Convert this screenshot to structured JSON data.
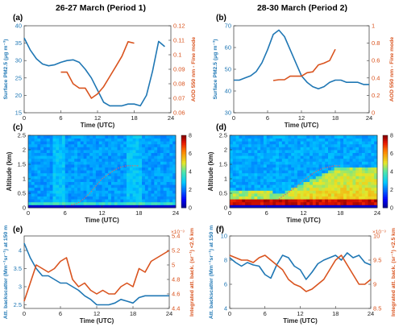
{
  "figure": {
    "period1_title": "26-27 March (Period 1)",
    "period2_title": "28-30 March (Period 2)"
  },
  "colors": {
    "blue": "#1f77b4",
    "orange": "#d9531e"
  },
  "chart_data": [
    {
      "id": "a",
      "panel_label": "(a)",
      "type": "line",
      "xlabel": "Time (UTC)",
      "xlim": [
        0,
        24
      ],
      "xticks": [
        "0",
        "6",
        "12",
        "18",
        "24"
      ],
      "left_axis": {
        "label": "Surface PM2.5 (μg m⁻³)",
        "ylim": [
          15,
          40
        ],
        "ticks": [
          "15",
          "20",
          "25",
          "30",
          "35",
          "40"
        ]
      },
      "right_axis": {
        "label": "AOD 550 nm - Fine mode",
        "ylim": [
          0.06,
          0.12
        ],
        "ticks": [
          "0.06",
          "0.07",
          "0.08",
          "0.09",
          "0.1",
          "0.11",
          "0.12"
        ]
      },
      "series": [
        {
          "axis": "left",
          "color": "blue",
          "x": [
            0,
            1,
            2,
            3,
            4,
            5,
            6,
            7,
            8,
            9,
            10,
            11,
            12,
            13,
            14,
            15,
            16,
            17,
            18,
            19,
            20,
            21,
            22,
            23
          ],
          "y": [
            36.5,
            33,
            30.5,
            29,
            28.5,
            28.8,
            29.5,
            30,
            30.2,
            29.5,
            27.5,
            25,
            21.5,
            18,
            17,
            17,
            17,
            17.5,
            17.5,
            17,
            20,
            27,
            35.5,
            34
          ]
        },
        {
          "axis": "right",
          "color": "orange",
          "x": [
            6,
            7,
            8,
            9,
            10,
            11,
            12,
            13,
            14,
            15,
            16,
            17,
            18
          ],
          "y": [
            0.088,
            0.088,
            0.08,
            0.077,
            0.077,
            0.07,
            0.073,
            0.078,
            0.085,
            0.092,
            0.099,
            0.109,
            0.108
          ]
        }
      ]
    },
    {
      "id": "b",
      "panel_label": "(b)",
      "type": "line",
      "xlabel": "Time (UTC)",
      "xlim": [
        0,
        24
      ],
      "xticks": [
        "0",
        "6",
        "12",
        "18",
        "24"
      ],
      "left_axis": {
        "label": "Surface PM2.5 (μg m⁻³)",
        "ylim": [
          30,
          70
        ],
        "ticks": [
          "30",
          "40",
          "50",
          "60",
          "70"
        ]
      },
      "right_axis": {
        "label": "AOD 550 nm - Fine mode",
        "ylim": [
          0,
          1
        ],
        "ticks": [
          "0",
          "0.2",
          "0.4",
          "0.6",
          "0.8",
          "1"
        ]
      },
      "series": [
        {
          "axis": "left",
          "color": "blue",
          "x": [
            0,
            1,
            2,
            3,
            4,
            5,
            6,
            7,
            8,
            9,
            10,
            11,
            12,
            13,
            14,
            15,
            16,
            17,
            18,
            19,
            20,
            21,
            22,
            23,
            24
          ],
          "y": [
            45,
            45,
            46,
            47,
            49,
            53,
            59,
            66,
            68,
            65,
            59,
            53,
            47,
            44,
            42,
            41,
            42,
            44,
            45,
            45,
            44,
            44,
            44,
            43,
            43
          ]
        },
        {
          "axis": "right",
          "color": "orange",
          "x": [
            7,
            8,
            9,
            10,
            11,
            12,
            13,
            14,
            15,
            16,
            17,
            18
          ],
          "y": [
            0.37,
            0.38,
            0.38,
            0.42,
            0.42,
            0.42,
            0.46,
            0.47,
            0.55,
            0.57,
            0.6,
            0.73
          ]
        }
      ]
    },
    {
      "id": "c",
      "panel_label": "(c)",
      "type": "heatmap",
      "xlabel": "Time (UTC)",
      "ylabel": "Altitude (km)",
      "xlim": [
        0,
        24
      ],
      "ylim": [
        0,
        2.5
      ],
      "xticks": [
        "0",
        "6",
        "12",
        "18",
        "24"
      ],
      "yticks": [
        "0",
        "0.5",
        "1",
        "1.5",
        "2",
        "2.5"
      ],
      "colorbar": {
        "range": [
          0,
          8
        ],
        "ticks": [
          "0",
          "2",
          "4",
          "6",
          "8"
        ]
      },
      "overlay_dashed_line": {
        "color": "#e06666",
        "x": [
          7,
          8,
          9,
          10,
          11,
          12,
          13,
          14,
          15,
          16,
          17,
          18
        ],
        "y": [
          0.1,
          0.15,
          0.3,
          0.5,
          0.75,
          1.0,
          1.15,
          1.3,
          1.4,
          1.45,
          1.45,
          1.45
        ]
      }
    },
    {
      "id": "d",
      "panel_label": "(d)",
      "type": "heatmap",
      "xlabel": "Time (UTC)",
      "ylabel": "Altitude (km)",
      "xlim": [
        0,
        24
      ],
      "ylim": [
        0,
        2.5
      ],
      "xticks": [
        "0",
        "6",
        "12",
        "18",
        "24"
      ],
      "yticks": [
        "0",
        "0.5",
        "1",
        "1.5",
        "2",
        "2.5"
      ],
      "colorbar": {
        "range": [
          0,
          8
        ],
        "ticks": [
          "0",
          "2",
          "4",
          "6",
          "8"
        ]
      },
      "overlay_dashed_line": {
        "color": "#e06666",
        "x": [
          8,
          9,
          10,
          11,
          12,
          13,
          14,
          15,
          16,
          17,
          18
        ],
        "y": [
          0.3,
          0.45,
          0.6,
          0.75,
          0.95,
          1.1,
          1.25,
          1.35,
          1.4,
          1.45,
          1.45
        ]
      }
    },
    {
      "id": "e",
      "panel_label": "(e)",
      "type": "line",
      "xlabel": "Time (UTC)",
      "xlim": [
        0,
        24
      ],
      "xticks": [
        "0",
        "6",
        "12",
        "18",
        "24"
      ],
      "left_axis": {
        "label": "Att. backscatter (Mm⁻¹sr⁻¹) at 150 m",
        "ylim": [
          2.4,
          4.4
        ],
        "ticks": [
          "2.5",
          "3",
          "3.5",
          "4"
        ]
      },
      "right_axis": {
        "label": "Integrated att. back. (sr⁻¹) <2.5 km",
        "ylim": [
          4.4,
          5.4
        ],
        "ticks": [
          "4.4",
          "4.6",
          "4.8",
          "5",
          "5.2",
          "5.4"
        ],
        "scale_label": "×10⁻³"
      },
      "series": [
        {
          "axis": "left",
          "color": "blue",
          "x": [
            0,
            1,
            2,
            3,
            4,
            5,
            6,
            7,
            8,
            9,
            10,
            11,
            12,
            13,
            14,
            15,
            16,
            17,
            18,
            19,
            20,
            21,
            22,
            23,
            24
          ],
          "y": [
            4.2,
            3.8,
            3.5,
            3.3,
            3.3,
            3.2,
            3.1,
            3.1,
            3.0,
            2.9,
            2.75,
            2.65,
            2.5,
            2.5,
            2.5,
            2.55,
            2.65,
            2.6,
            2.55,
            2.7,
            2.75,
            2.75,
            2.75,
            2.75,
            2.75
          ]
        },
        {
          "axis": "right",
          "color": "orange",
          "x": [
            0,
            1,
            2,
            3,
            4,
            5,
            6,
            7,
            8,
            9,
            10,
            11,
            12,
            13,
            14,
            15,
            16,
            17,
            18,
            19,
            20,
            21,
            22,
            23,
            24
          ],
          "y": [
            4.5,
            4.75,
            5.0,
            4.95,
            4.9,
            4.95,
            5.05,
            5.1,
            4.8,
            4.7,
            4.75,
            4.65,
            4.6,
            4.65,
            4.6,
            4.6,
            4.7,
            4.75,
            4.7,
            4.95,
            4.9,
            5.05,
            5.1,
            5.15,
            5.2
          ]
        }
      ]
    },
    {
      "id": "f",
      "panel_label": "(f)",
      "type": "line",
      "xlabel": "Time (UTC)",
      "xlim": [
        0,
        24
      ],
      "xticks": [
        "0",
        "6",
        "12",
        "18",
        "24"
      ],
      "left_axis": {
        "label": "Att. backscatter (Mm⁻¹sr⁻¹) at 150 m",
        "ylim": [
          4,
          10
        ],
        "ticks": [
          "4",
          "6",
          "8",
          "10"
        ]
      },
      "right_axis": {
        "label": "Integrated att. back. (sr⁻¹) <2.5 km",
        "ylim": [
          8.5,
          10
        ],
        "ticks": [
          "8.5",
          "9",
          "9.5",
          "10"
        ],
        "scale_label": "×10⁻³"
      },
      "series": [
        {
          "axis": "left",
          "color": "blue",
          "x": [
            0,
            1,
            2,
            3,
            4,
            5,
            6,
            7,
            8,
            9,
            10,
            11,
            12,
            13,
            14,
            15,
            16,
            17,
            18,
            19,
            20,
            21,
            22,
            23,
            24
          ],
          "y": [
            8.2,
            7.8,
            7.5,
            7.8,
            7.6,
            7.5,
            6.8,
            6.5,
            7.6,
            8.4,
            8.2,
            7.5,
            7.2,
            6.4,
            7.0,
            7.7,
            8.0,
            8.2,
            8.4,
            8.0,
            8.6,
            8.2,
            8.4,
            7.8,
            7.6
          ]
        },
        {
          "axis": "right",
          "color": "orange",
          "x": [
            0,
            1,
            2,
            3,
            4,
            5,
            6,
            7,
            8,
            9,
            10,
            11,
            12,
            13,
            14,
            15,
            16,
            17,
            18,
            19,
            20,
            21,
            22,
            23,
            24
          ],
          "y": [
            9.6,
            9.55,
            9.5,
            9.5,
            9.45,
            9.55,
            9.6,
            9.5,
            9.4,
            9.3,
            9.1,
            9.0,
            8.95,
            8.85,
            8.9,
            9.0,
            9.1,
            9.3,
            9.5,
            9.6,
            9.4,
            9.2,
            9.0,
            9.0,
            9.1
          ]
        }
      ]
    }
  ]
}
